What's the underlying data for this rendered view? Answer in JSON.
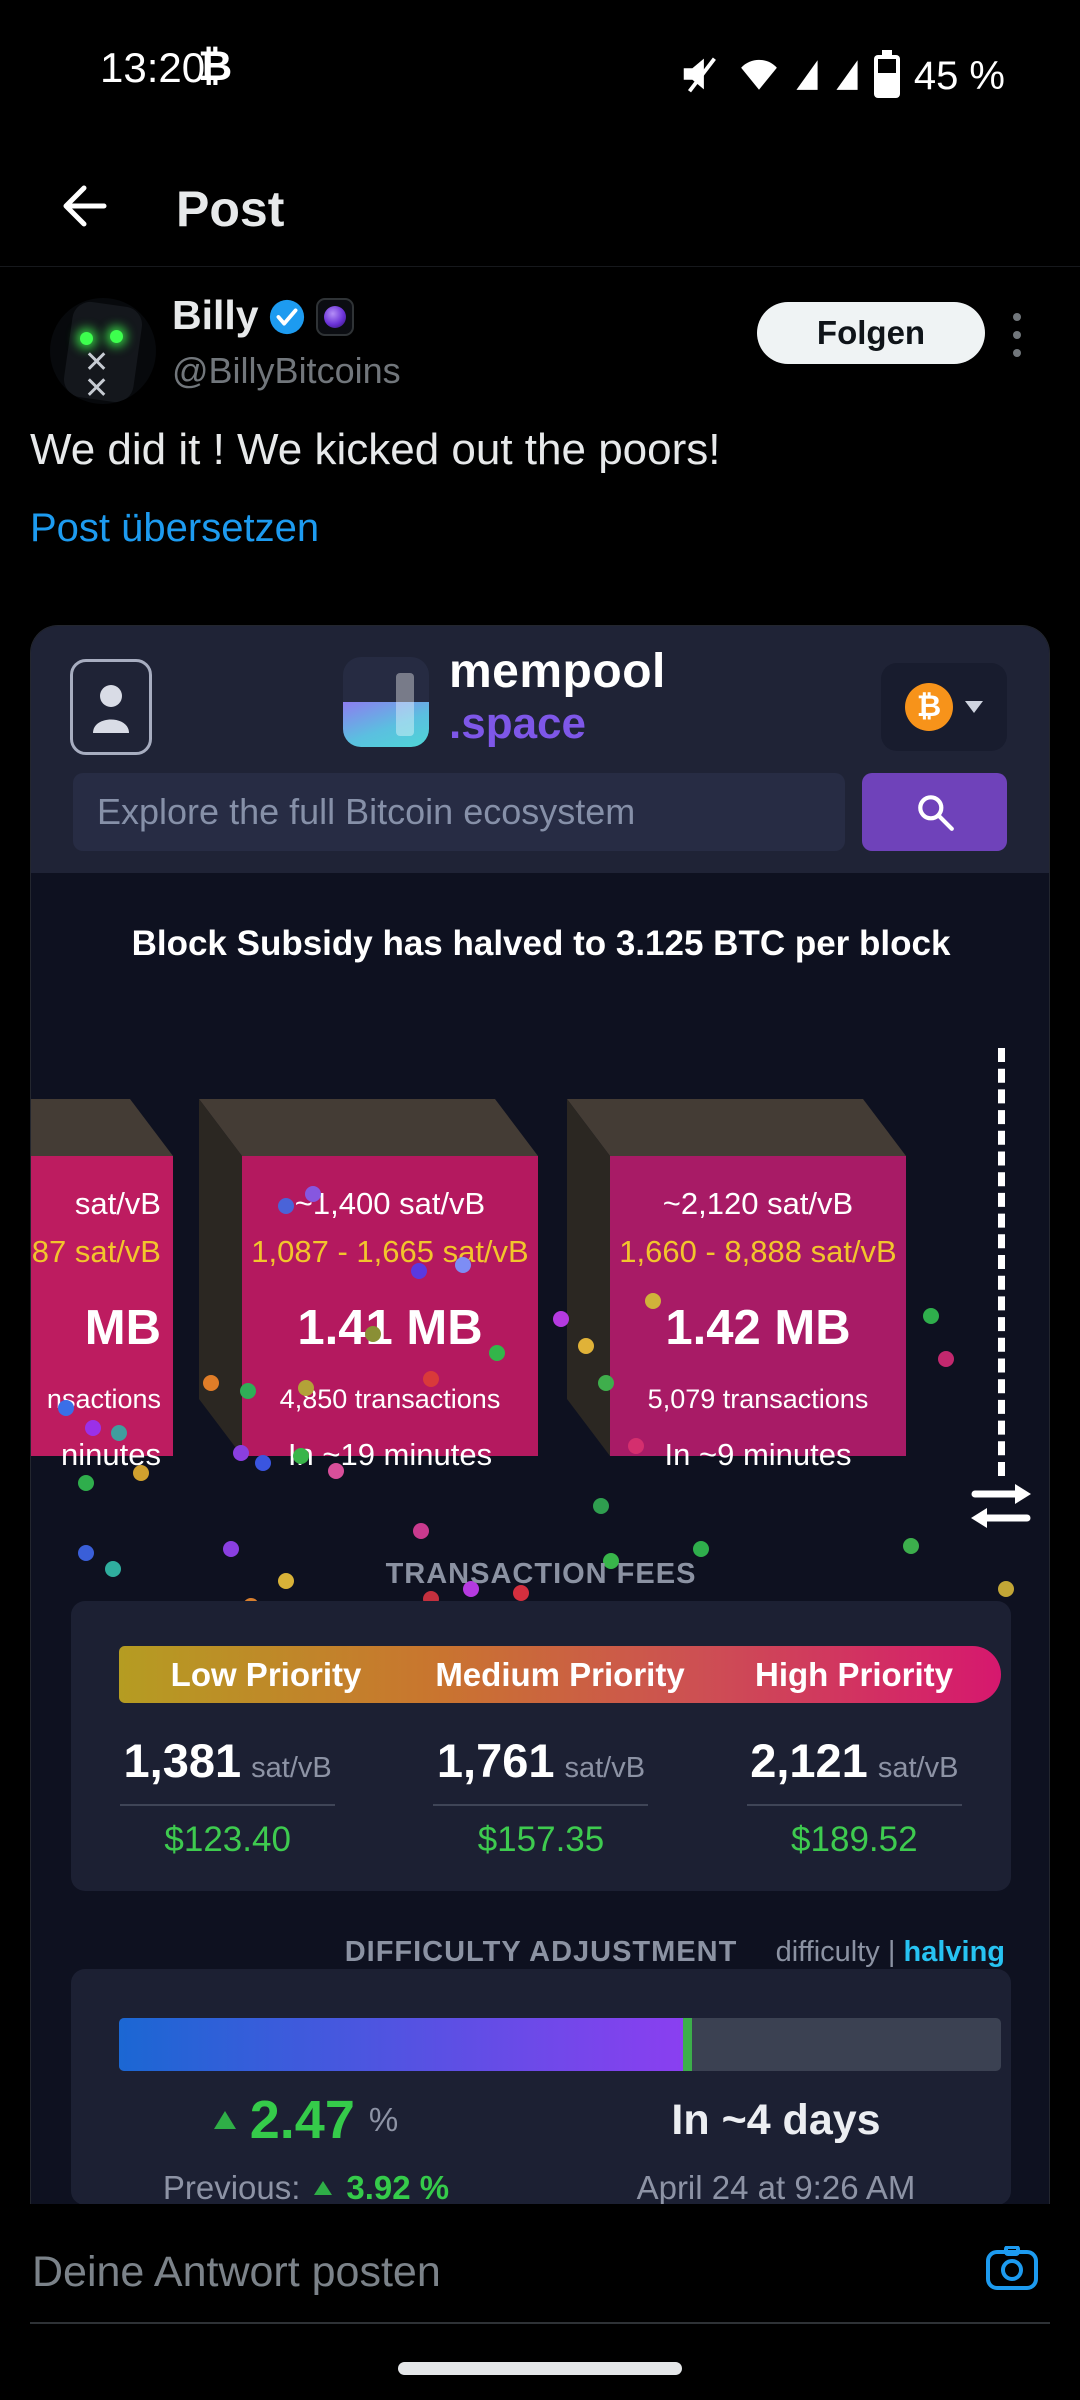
{
  "status_bar": {
    "time": "13:20",
    "bitcoin_symbol": "₿",
    "battery": "45 %"
  },
  "nav": {
    "title": "Post"
  },
  "post": {
    "author": {
      "name": "Billy",
      "handle": "@BillyBitcoins"
    },
    "follow_label": "Folgen",
    "text": "We did it ! We kicked out the poors!",
    "translate_label": "Post übersetzen"
  },
  "mempool": {
    "logo": {
      "name": "mempool",
      "tld": ".space"
    },
    "btc_symbol": "₿",
    "search_placeholder": "Explore the full Bitcoin ecosystem",
    "banner": "Block Subsidy has halved to 3.125 BTC per block",
    "blocks": [
      {
        "median": "sat/vB",
        "range": "87 sat/vB",
        "size": "MB",
        "tx": "nsactions",
        "eta": "ninutes"
      },
      {
        "median": "~1,400 sat/vB",
        "range": "1,087 - 1,665 sat/vB",
        "size": "1.41 MB",
        "tx": "4,850 transactions",
        "eta": "In ~19 minutes"
      },
      {
        "median": "~2,120 sat/vB",
        "range": "1,660 - 8,888 sat/vB",
        "size": "1.42 MB",
        "tx": "5,079 transactions",
        "eta": "In ~9 minutes"
      }
    ],
    "fees": {
      "section_title": "TRANSACTION FEES",
      "unit": "sat/vB",
      "tiers": [
        {
          "label": "Low Priority",
          "rate": "1,381",
          "usd": "$123.40"
        },
        {
          "label": "Medium Priority",
          "rate": "1,761",
          "usd": "$157.35"
        },
        {
          "label": "High Priority",
          "rate": "2,121",
          "usd": "$189.52"
        }
      ]
    },
    "difficulty": {
      "section_title": "DIFFICULTY ADJUSTMENT",
      "legend_difficulty": "difficulty",
      "legend_separator": "|",
      "legend_halving": "halving",
      "change": "2.47",
      "change_unit": "%",
      "previous_label": "Previous:",
      "previous": "3.92 %",
      "eta": "In ~4 days",
      "date": "April 24 at 9:26 AM",
      "progress_pct": 64
    }
  },
  "reply": {
    "placeholder": "Deine Antwort posten"
  },
  "colors": {
    "accent_blue": "#1d9bf0",
    "mempool_purple": "#7e57e8",
    "btc_orange": "#f7931a",
    "block_pink": "#b4195f",
    "usd_green": "#3ecb4f",
    "halving_cyan": "#27c3f2",
    "fee_gradient": [
      "#b59c22",
      "#c9752f",
      "#cd4f53",
      "#d6186e"
    ],
    "difficulty_gradient": [
      "#1b67d3",
      "#8a3ff0"
    ]
  }
}
